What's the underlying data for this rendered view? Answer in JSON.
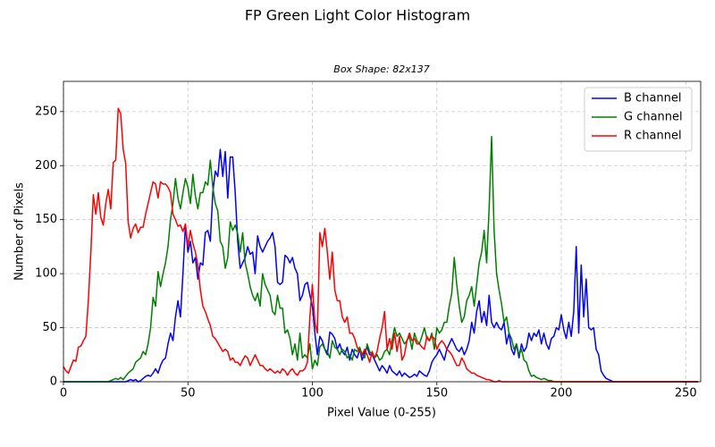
{
  "chart_data": {
    "type": "line",
    "title": "FP Green Light Color Histogram",
    "subtitle": "Box Shape: 82x137",
    "x_label": "Pixel Value (0-255)",
    "y_label": "Number of Pixels",
    "xlim": [
      0,
      256
    ],
    "ylim": [
      0,
      278
    ],
    "xticks": [
      0,
      50,
      100,
      150,
      200,
      250
    ],
    "yticks": [
      0,
      50,
      100,
      150,
      200,
      250
    ],
    "grid": true,
    "legend": "upper right",
    "x": [
      0,
      1,
      2,
      3,
      4,
      5,
      6,
      7,
      8,
      9,
      10,
      11,
      12,
      13,
      14,
      15,
      16,
      17,
      18,
      19,
      20,
      21,
      22,
      23,
      24,
      25,
      26,
      27,
      28,
      29,
      30,
      31,
      32,
      33,
      34,
      35,
      36,
      37,
      38,
      39,
      40,
      41,
      42,
      43,
      44,
      45,
      46,
      47,
      48,
      49,
      50,
      51,
      52,
      53,
      54,
      55,
      56,
      57,
      58,
      59,
      60,
      61,
      62,
      63,
      64,
      65,
      66,
      67,
      68,
      69,
      70,
      71,
      72,
      73,
      74,
      75,
      76,
      77,
      78,
      79,
      80,
      81,
      82,
      83,
      84,
      85,
      86,
      87,
      88,
      89,
      90,
      91,
      92,
      93,
      94,
      95,
      96,
      97,
      98,
      99,
      100,
      101,
      102,
      103,
      104,
      105,
      106,
      107,
      108,
      109,
      110,
      111,
      112,
      113,
      114,
      115,
      116,
      117,
      118,
      119,
      120,
      121,
      122,
      123,
      124,
      125,
      126,
      127,
      128,
      129,
      130,
      131,
      132,
      133,
      134,
      135,
      136,
      137,
      138,
      139,
      140,
      141,
      142,
      143,
      144,
      145,
      146,
      147,
      148,
      149,
      150,
      151,
      152,
      153,
      154,
      155,
      156,
      157,
      158,
      159,
      160,
      161,
      162,
      163,
      164,
      165,
      166,
      167,
      168,
      169,
      170,
      171,
      172,
      173,
      174,
      175,
      176,
      177,
      178,
      179,
      180,
      181,
      182,
      183,
      184,
      185,
      186,
      187,
      188,
      189,
      190,
      191,
      192,
      193,
      194,
      195,
      196,
      197,
      198,
      199,
      200,
      201,
      202,
      203,
      204,
      205,
      206,
      207,
      208,
      209,
      210,
      211,
      212,
      213,
      214,
      215,
      216,
      217,
      218,
      219,
      220,
      221,
      222,
      223,
      224,
      225,
      226,
      227,
      228,
      229,
      230,
      231,
      232,
      233,
      234,
      235,
      236,
      237,
      238,
      239,
      240,
      241,
      242,
      243,
      244,
      245,
      246,
      247,
      248,
      249,
      250,
      251,
      252,
      253,
      254,
      255
    ],
    "series": [
      {
        "name": "B channel",
        "color": "#0000ff",
        "values": [
          0,
          0,
          0,
          0,
          0,
          0,
          0,
          0,
          0,
          0,
          0,
          0,
          0,
          0,
          0,
          0,
          0,
          0,
          0,
          0,
          0,
          0,
          0,
          0,
          0,
          0,
          1,
          2,
          1,
          2,
          0,
          1,
          3,
          5,
          6,
          5,
          8,
          12,
          8,
          15,
          20,
          22,
          35,
          45,
          38,
          60,
          75,
          60,
          100,
          145,
          120,
          130,
          110,
          115,
          95,
          110,
          108,
          138,
          140,
          130,
          175,
          195,
          190,
          215,
          190,
          213,
          170,
          208,
          208,
          175,
          130,
          105,
          110,
          115,
          125,
          118,
          120,
          100,
          135,
          125,
          120,
          125,
          130,
          133,
          138,
          125,
          92,
          90,
          92,
          117,
          115,
          110,
          115,
          105,
          100,
          75,
          80,
          90,
          92,
          80,
          70,
          45,
          25,
          42,
          38,
          30,
          25,
          46,
          44,
          40,
          30,
          35,
          28,
          25,
          32,
          20,
          30,
          25,
          22,
          30,
          20,
          28,
          32,
          25,
          25,
          20,
          15,
          10,
          15,
          12,
          8,
          15,
          10,
          8,
          6,
          10,
          5,
          8,
          6,
          4,
          5,
          7,
          5,
          10,
          8,
          6,
          5,
          10,
          18,
          22,
          25,
          30,
          25,
          20,
          30,
          35,
          40,
          35,
          30,
          28,
          32,
          25,
          30,
          38,
          55,
          45,
          65,
          75,
          55,
          65,
          52,
          80,
          55,
          50,
          55,
          50,
          48,
          55,
          35,
          45,
          30,
          25,
          35,
          22,
          35,
          28,
          32,
          45,
          38,
          45,
          42,
          48,
          35,
          45,
          35,
          30,
          40,
          42,
          50,
          48,
          62,
          48,
          40,
          55,
          42,
          65,
          125,
          45,
          108,
          60,
          95,
          50,
          48,
          50,
          30,
          25,
          10,
          6,
          3,
          2,
          1,
          0,
          0,
          0,
          0,
          0,
          0,
          0,
          0,
          0,
          0,
          0,
          0,
          0,
          0,
          0,
          0,
          0,
          0,
          0,
          0,
          0,
          0,
          0,
          0,
          0,
          0,
          0,
          0,
          0,
          0,
          0,
          0,
          0,
          0,
          0
        ]
      },
      {
        "name": "G channel",
        "color": "#008000",
        "values": [
          0,
          0,
          0,
          0,
          0,
          0,
          0,
          0,
          0,
          0,
          0,
          0,
          0,
          0,
          0,
          0,
          0,
          0,
          0,
          1,
          2,
          3,
          2,
          4,
          2,
          5,
          8,
          10,
          12,
          18,
          20,
          22,
          28,
          25,
          35,
          50,
          78,
          70,
          102,
          88,
          100,
          110,
          125,
          150,
          165,
          188,
          170,
          160,
          175,
          188,
          180,
          165,
          192,
          172,
          160,
          175,
          175,
          185,
          182,
          205,
          180,
          165,
          158,
          130,
          125,
          105,
          115,
          148,
          140,
          145,
          137,
          120,
          138,
          110,
          100,
          88,
          80,
          75,
          82,
          70,
          100,
          90,
          85,
          80,
          65,
          62,
          80,
          68,
          68,
          45,
          48,
          40,
          25,
          35,
          20,
          45,
          22,
          25,
          22,
          35,
          12,
          20,
          15,
          32,
          35,
          30,
          28,
          22,
          38,
          32,
          30,
          25,
          30,
          28,
          22,
          25,
          20,
          30,
          28,
          32,
          25,
          22,
          35,
          28,
          25,
          22,
          25,
          20,
          22,
          28,
          30,
          25,
          38,
          50,
          42,
          45,
          40,
          35,
          38,
          42,
          30,
          45,
          38,
          35,
          42,
          50,
          40,
          38,
          45,
          30,
          50,
          45,
          48,
          55,
          55,
          70,
          82,
          115,
          90,
          70,
          55,
          60,
          75,
          80,
          88,
          70,
          90,
          110,
          120,
          140,
          110,
          160,
          227,
          140,
          100,
          85,
          72,
          55,
          60,
          45,
          40,
          30,
          35,
          25,
          30,
          20,
          18,
          10,
          5,
          6,
          4,
          3,
          2,
          3,
          2,
          1,
          1,
          0,
          0,
          0,
          0,
          0,
          0,
          0,
          0,
          0,
          0,
          0,
          0,
          0,
          0,
          0,
          0,
          0,
          0,
          0,
          0,
          0,
          0,
          0,
          0,
          0,
          0,
          0,
          0,
          0,
          0,
          0,
          0,
          0,
          0,
          0,
          0,
          0,
          0,
          0,
          0,
          0,
          0,
          0,
          0,
          0,
          0,
          0,
          0,
          0,
          0,
          0,
          0,
          0,
          0,
          0,
          0,
          0,
          0,
          0
        ]
      },
      {
        "name": "R channel",
        "color": "#ff0000",
        "values": [
          14,
          10,
          8,
          14,
          20,
          19,
          32,
          33,
          38,
          42,
          75,
          120,
          173,
          155,
          175,
          152,
          145,
          165,
          178,
          160,
          203,
          205,
          253,
          248,
          215,
          202,
          148,
          133,
          142,
          146,
          138,
          143,
          143,
          155,
          165,
          175,
          185,
          183,
          170,
          185,
          183,
          183,
          180,
          175,
          155,
          150,
          144,
          145,
          139,
          146,
          125,
          140,
          128,
          120,
          108,
          85,
          70,
          65,
          58,
          52,
          42,
          40,
          36,
          32,
          28,
          30,
          28,
          20,
          22,
          18,
          18,
          15,
          20,
          24,
          22,
          15,
          20,
          25,
          20,
          15,
          15,
          12,
          10,
          12,
          10,
          8,
          10,
          8,
          12,
          10,
          6,
          10,
          12,
          8,
          6,
          10,
          10,
          12,
          18,
          60,
          90,
          55,
          45,
          138,
          125,
          142,
          120,
          95,
          120,
          85,
          75,
          75,
          60,
          55,
          60,
          45,
          45,
          40,
          32,
          28,
          25,
          30,
          25,
          18,
          28,
          22,
          28,
          40,
          50,
          65,
          30,
          40,
          30,
          45,
          28,
          42,
          20,
          25,
          38,
          45,
          38,
          40,
          35,
          35,
          32,
          30,
          42,
          38,
          42,
          40,
          30,
          35,
          38,
          35,
          30,
          28,
          25,
          20,
          15,
          15,
          22,
          18,
          12,
          10,
          8,
          8,
          6,
          5,
          4,
          3,
          2,
          2,
          1,
          0,
          0,
          1,
          0,
          0,
          0,
          0,
          0,
          0,
          0,
          0,
          0,
          0,
          0,
          0,
          0,
          0,
          0,
          0,
          0,
          0,
          0,
          0,
          0,
          0,
          0,
          0,
          0,
          0,
          0,
          0,
          0,
          0,
          0,
          0,
          0,
          0,
          0,
          0,
          0,
          0,
          0,
          0,
          0,
          0,
          0,
          0,
          0,
          0,
          0,
          0,
          0,
          0,
          0,
          0,
          0,
          0,
          0,
          0,
          0,
          0,
          0,
          0,
          0,
          0,
          0,
          0,
          0,
          0,
          0,
          0,
          0,
          0,
          0,
          0,
          0,
          0,
          0,
          0,
          0,
          0,
          0,
          0
        ]
      }
    ]
  }
}
